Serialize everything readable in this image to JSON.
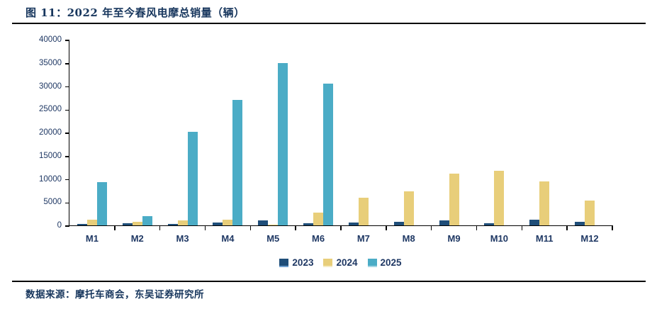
{
  "header": {
    "title": "图 11：2022 年至今春风电摩总销量（辆）"
  },
  "footer": {
    "source": "数据来源：摩托车商会，东吴证券研究所"
  },
  "colors": {
    "axis": "#000000",
    "text_navy": "#1F3864",
    "title_navy": "#17365D"
  },
  "chart_data": {
    "type": "bar",
    "title": "图 11：2022 年至今春风电摩总销量（辆）",
    "categories": [
      "M1",
      "M2",
      "M3",
      "M4",
      "M5",
      "M6",
      "M7",
      "M8",
      "M9",
      "M10",
      "M11",
      "M12"
    ],
    "series": [
      {
        "name": "2023",
        "color": "#1F4E79",
        "legend_accent": "#6FA0CF",
        "values": [
          300,
          500,
          250,
          600,
          1000,
          400,
          550,
          800,
          1000,
          500,
          1200,
          800
        ]
      },
      {
        "name": "2024",
        "color": "#E8CE7A",
        "legend_accent": "#F6EBC4",
        "values": [
          1300,
          800,
          1000,
          1250,
          200,
          2700,
          5900,
          7300,
          11200,
          11700,
          9500,
          5300
        ]
      },
      {
        "name": "2025",
        "color": "#4BACC6",
        "legend_accent": "#A5D6E4",
        "values": [
          9300,
          2000,
          20200,
          27100,
          34900,
          30600,
          null,
          null,
          null,
          null,
          null,
          null
        ]
      }
    ],
    "xlabel": "",
    "ylabel": "",
    "ylim": [
      0,
      40000
    ],
    "yticks": [
      0,
      5000,
      10000,
      15000,
      20000,
      25000,
      30000,
      35000,
      40000
    ],
    "grid": false,
    "legend_position": "bottom-center"
  }
}
